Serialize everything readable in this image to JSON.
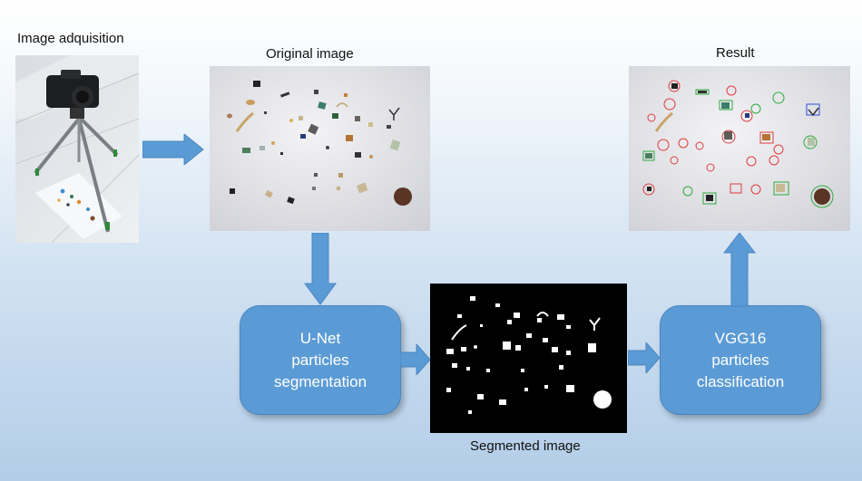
{
  "labels": {
    "acquisition": "Image adquisition",
    "original": "Original image",
    "result": "Result",
    "segmented": "Segmented image"
  },
  "boxes": {
    "unet": {
      "line1": "U-Net",
      "line2": "particles",
      "line3": "segmentation"
    },
    "vgg": {
      "line1": "VGG16",
      "line2": "particles",
      "line3": "classification"
    }
  },
  "colors": {
    "box_fill": "#5b9bd5",
    "arrow_fill": "#5b9bd5",
    "background_top": "#ffffff",
    "background_bottom": "#b3cde8"
  }
}
